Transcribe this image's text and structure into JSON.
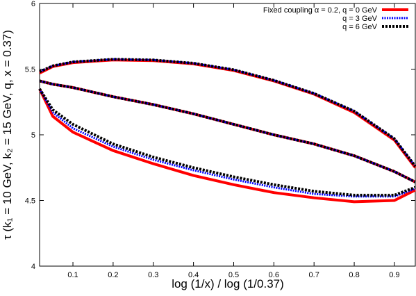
{
  "chart_data": {
    "type": "line",
    "xlabel": "log (1/x) / log (1/0.37)",
    "ylabel": "τ (k₁ = 10 GeV, k₂ = 15 GeV, q, x = 0.37)",
    "x": [
      0.017,
      0.05,
      0.1,
      0.2,
      0.3,
      0.4,
      0.5,
      0.6,
      0.7,
      0.8,
      0.9,
      0.952,
      null,
      0.017,
      0.05,
      0.1,
      0.2,
      0.3,
      0.4,
      0.5,
      0.6,
      0.7,
      0.8,
      0.9,
      0.952,
      null,
      0.017,
      0.05,
      0.1,
      0.2,
      0.3,
      0.4,
      0.5,
      0.6,
      0.7,
      0.8,
      0.9,
      0.952
    ],
    "series": [
      {
        "name": "Fixed coupling α = 0.2, q = 0 GeV",
        "color": "#ff0000",
        "style": "solid",
        "values": [
          5.47,
          5.52,
          5.55,
          5.57,
          5.565,
          5.54,
          5.49,
          5.41,
          5.31,
          5.17,
          4.96,
          4.75,
          null,
          5.41,
          5.385,
          5.36,
          5.29,
          5.23,
          5.16,
          5.08,
          5.0,
          4.93,
          4.84,
          4.72,
          4.64,
          null,
          5.35,
          5.14,
          5.02,
          4.88,
          4.78,
          4.69,
          4.62,
          4.56,
          4.52,
          4.49,
          4.5,
          4.58
        ]
      },
      {
        "name": "q = 3 GeV",
        "color": "#0000ff",
        "style": "dotted",
        "values": [
          5.48,
          5.525,
          5.555,
          5.575,
          5.57,
          5.545,
          5.495,
          5.415,
          5.315,
          5.18,
          4.97,
          4.76,
          null,
          5.41,
          5.385,
          5.36,
          5.29,
          5.23,
          5.16,
          5.08,
          5.0,
          4.93,
          4.84,
          4.72,
          4.64,
          null,
          5.35,
          5.17,
          5.05,
          4.91,
          4.81,
          4.73,
          4.66,
          4.6,
          4.55,
          4.53,
          4.53,
          4.59
        ]
      },
      {
        "name": "q = 6 GeV",
        "color": "#000000",
        "style": "dashed",
        "values": [
          5.48,
          5.525,
          5.555,
          5.575,
          5.57,
          5.545,
          5.495,
          5.415,
          5.315,
          5.18,
          4.97,
          4.76,
          null,
          5.41,
          5.385,
          5.36,
          5.29,
          5.23,
          5.16,
          5.08,
          5.0,
          4.93,
          4.84,
          4.72,
          4.64,
          null,
          5.35,
          5.19,
          5.08,
          4.93,
          4.83,
          4.75,
          4.68,
          4.62,
          4.57,
          4.54,
          4.54,
          4.6
        ]
      }
    ],
    "xlim": [
      0.017,
      0.952
    ],
    "ylim": [
      4,
      6
    ],
    "xticks": [
      0.1,
      0.2,
      0.3,
      0.4,
      0.5,
      0.6,
      0.7,
      0.8,
      0.9
    ],
    "yticks": [
      4,
      4.5,
      5,
      5.5,
      6
    ],
    "legend": "top-right"
  }
}
